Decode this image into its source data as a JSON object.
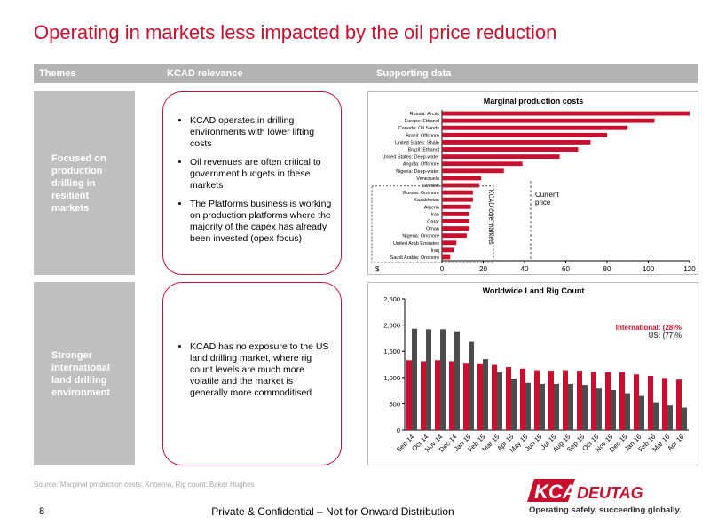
{
  "title": "Operating in markets less impacted by the oil price reduction",
  "table": {
    "headers": [
      "Themes",
      "KCAD relevance",
      "Supporting data"
    ],
    "rows": [
      {
        "theme": "Focused on production drilling in resilient markets",
        "bullets": [
          "KCAD operates in drilling environments with lower lifting costs",
          "Oil revenues are often critical to government budgets in these markets",
          "The Platforms business is working on production platforms where the majority of the capex has already been invested (opex focus)"
        ]
      },
      {
        "theme": "Stronger international land drilling environment",
        "bullets": [
          "KCAD has no exposure to the US land drilling market, where rig count levels are much more volatile and the market is generally more commoditised"
        ]
      }
    ]
  },
  "chart_data": [
    {
      "type": "hbar",
      "title": "Marginal production costs",
      "categories": [
        "Russia: Arctic",
        "Europe: Ethanol",
        "Canada: Oil Sands",
        "Brazil: Offshore",
        "United States: Shale",
        "Brazil: Ethanol",
        "United States: Deep-water",
        "Angola: Offshore",
        "Nigeria: Deep-water",
        "Venezuela",
        "Sweden",
        "Russia: Onshore",
        "Kazakhstan",
        "Algeria",
        "Iran",
        "Qatar",
        "Oman",
        "Nigeria: Onshore",
        "United Arab Emirates",
        "Iraq",
        "Saudi Arabia: Onshore"
      ],
      "values": [
        120,
        103,
        90,
        80,
        72,
        66,
        57,
        39,
        30,
        19,
        18,
        15,
        15,
        14,
        13,
        13,
        13,
        12,
        7,
        6,
        4
      ],
      "color": "#c8102e",
      "xlim": [
        0,
        120
      ],
      "xticks": [
        0,
        20,
        40,
        60,
        80,
        100,
        120
      ],
      "unit_label": "$",
      "core_markets_label": "KCAD core markets",
      "reference_line": {
        "value": 43,
        "label": "Current price"
      }
    },
    {
      "type": "grouped-bar",
      "title": "Worldwide Land Rig Count",
      "categories": [
        "Sep-14",
        "Oct-14",
        "Nov-14",
        "Dec-14",
        "Jan-15",
        "Feb-15",
        "Mar-15",
        "Apr-15",
        "May-15",
        "Jun-15",
        "Jul-15",
        "Aug-15",
        "Sep-15",
        "Oct-15",
        "Nov-15",
        "Dec-15",
        "Jan-16",
        "Feb-16",
        "Mar-16",
        "Apr-16"
      ],
      "series": [
        {
          "name": "International: (28)%",
          "color": "#c8102e",
          "values": [
            1330,
            1310,
            1330,
            1310,
            1280,
            1270,
            1240,
            1200,
            1170,
            1140,
            1130,
            1140,
            1130,
            1110,
            1100,
            1100,
            1060,
            1030,
            990,
            960
          ]
        },
        {
          "name": "US: (77)%",
          "color": "#4d4d4d",
          "values": [
            1930,
            1920,
            1920,
            1880,
            1680,
            1350,
            1100,
            980,
            900,
            880,
            880,
            880,
            860,
            790,
            760,
            700,
            650,
            530,
            470,
            430
          ]
        }
      ],
      "ylim": [
        0,
        2500
      ],
      "yticks": [
        0,
        500,
        {
          "value": 1000,
          "label": "1,000"
        },
        {
          "value": 1500,
          "label": "1,500"
        },
        {
          "value": 2000,
          "label": "2,000"
        },
        {
          "value": 2500,
          "label": "2,500"
        }
      ],
      "legend": "top-right"
    }
  ],
  "source": "Source: Marginal production costs: Knoema, Rig count: Baker Hughes",
  "page_number": 8,
  "footer": "Private & Confidential – Not for Onward Distribution",
  "logo": {
    "kca": "KCA",
    "deutag": "DEUTAG",
    "tagline": "Operating safely, succeeding globally."
  }
}
